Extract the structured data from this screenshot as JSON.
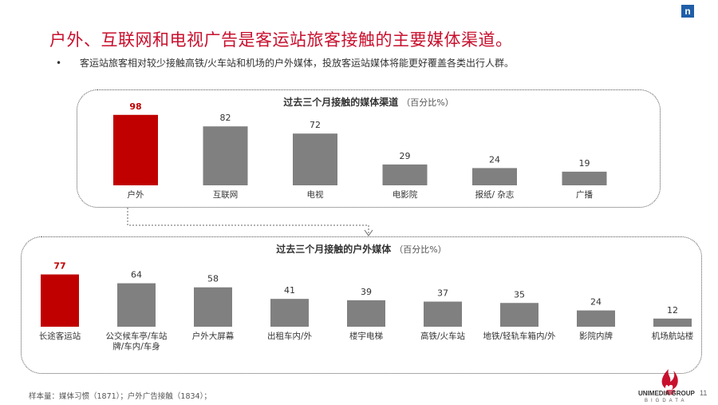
{
  "title": "户外、互联网和电视广告是客运站旅客接触的主要媒体渠道。",
  "bullet": {
    "marker": "•",
    "text": "客运站旅客相对较少接触高铁/火车站和机场的户外媒体，投放客运站媒体将能更好覆盖各类出行人群。"
  },
  "corner_icon": "n",
  "chart_data": [
    {
      "type": "bar",
      "title": "过去三个月接触的媒体渠道",
      "unit": "（百分比%）",
      "categories": [
        "户外",
        "互联网",
        "电视",
        "电影院",
        "报纸/ 杂志",
        "广播"
      ],
      "values": [
        98,
        82,
        72,
        29,
        24,
        19
      ],
      "highlight_index": 0,
      "colors": {
        "highlight": "#c00000",
        "default": "#808080"
      }
    },
    {
      "type": "bar",
      "title": "过去三个月接触的户外媒体",
      "unit": "（百分比%）",
      "categories": [
        [
          "长途客运站"
        ],
        [
          "公交候车亭/车站",
          "牌/车内/车身"
        ],
        [
          "户外大屏幕"
        ],
        [
          "出租车内/外"
        ],
        [
          "楼宇电梯"
        ],
        [
          "高铁/火车站"
        ],
        [
          "地铁/轻轨车箱内/外"
        ],
        [
          "影院内牌"
        ],
        [
          "机场航站楼"
        ]
      ],
      "values": [
        77,
        64,
        58,
        41,
        39,
        37,
        35,
        24,
        12
      ],
      "highlight_index": 0,
      "colors": {
        "highlight": "#c00000",
        "default": "#808080"
      }
    }
  ],
  "footnote": "样本量：媒体习惯（1871）；户外广告接触（1834）；",
  "logo": {
    "name": "UNIMEDIA GROUP",
    "sub": "BIGDATA"
  },
  "page_number": "11"
}
